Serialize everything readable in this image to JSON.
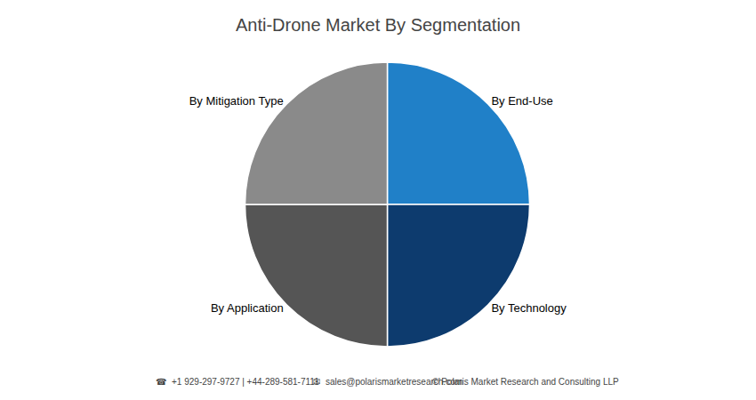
{
  "chart_data": {
    "type": "pie",
    "title": "Anti-Drone Market By Segmentation",
    "categories": [
      "By End-Use",
      "By Technology",
      "By Application",
      "By Mitigation Type"
    ],
    "values": [
      25,
      25,
      25,
      25
    ],
    "colors": [
      "#2080c8",
      "#0d3b6e",
      "#555555",
      "#8a8a8a"
    ],
    "annotations": [
      "☎  +1 929-297-9727 | +44-289-581-7111",
      "✉  sales@polarismarketresearch.com",
      "© Polaris Market Research and Consulting LLP"
    ]
  }
}
